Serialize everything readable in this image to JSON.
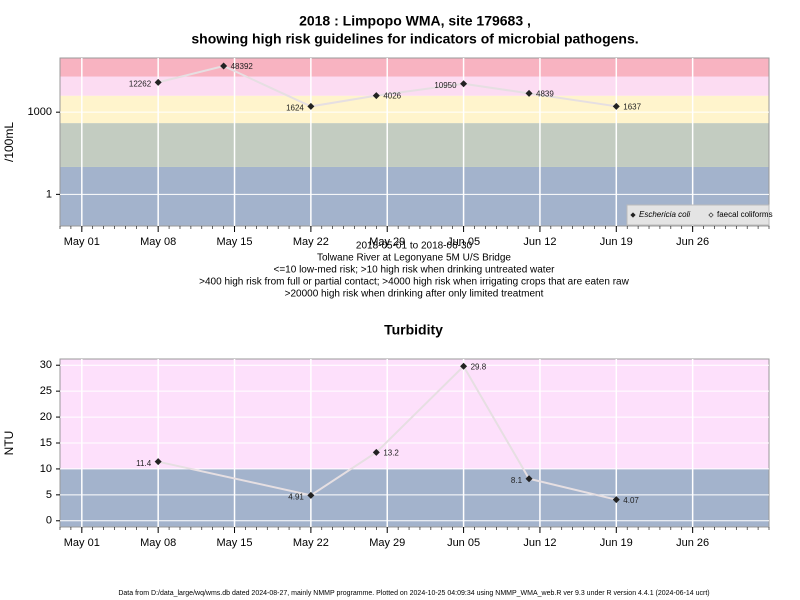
{
  "title": [
    "2018 : Limpopo WMA, site 179683 ,",
    "showing high risk guidelines for indicators of microbial pathogens."
  ],
  "footer": "Data from D:/data_large/wq/wms.db dated 2024-08-27, mainly NMMP programme. Plotted on 2024-10-25 04:09:34 using NMMP_WMA_web.R ver 9.3 under R version 4.4.1 (2024-06-14 ucrt)",
  "chart_data": [
    {
      "type": "line",
      "ylabel": "/100mL",
      "yscale": "log",
      "x": [
        "2018-05-08",
        "2018-05-14",
        "2018-05-22",
        "2018-05-28",
        "2018-06-05",
        "2018-06-11",
        "2018-06-19"
      ],
      "series": [
        {
          "name": "Eschericia coli",
          "color": "#222222",
          "values": [
            12262,
            48392,
            1624,
            4026,
            10950,
            4839,
            1637
          ]
        },
        {
          "name": "faecal coliforms",
          "color": "#222222",
          "values": [
            null,
            null,
            null,
            null,
            null,
            null,
            null
          ]
        }
      ],
      "line_color": "#e6dfe2",
      "xlim": [
        "2018-04-29",
        "2018-07-03"
      ],
      "xticks": [
        {
          "value": "2018-05-01",
          "label": "May 01"
        },
        {
          "value": "2018-05-08",
          "label": "May 08"
        },
        {
          "value": "2018-05-15",
          "label": "May 15"
        },
        {
          "value": "2018-05-22",
          "label": "May 22"
        },
        {
          "value": "2018-05-29",
          "label": "May 29"
        },
        {
          "value": "2018-06-05",
          "label": "Jun 05"
        },
        {
          "value": "2018-06-12",
          "label": "Jun 12"
        },
        {
          "value": "2018-06-19",
          "label": "Jun 19"
        },
        {
          "value": "2018-06-26",
          "label": "Jun 26"
        }
      ],
      "ylim": [
        0.07,
        95000
      ],
      "yticks": [
        1,
        1000
      ],
      "thresholds": [
        10,
        400,
        4000,
        20000
      ],
      "band_colors": [
        "#a3b3cc",
        "#c3ccc1",
        "#fff4cc",
        "#fcdcf2",
        "#f8b3c1"
      ],
      "grid": true,
      "legend": "bottom right",
      "notes": [
        "2018-05-01 to 2018-06-30",
        "Tolwane River at Legonyane 5M U/S Bridge",
        "<=10 low-med risk; >10 high risk when drinking untreated water",
        ">400 high risk from full or partial contact; >4000 high risk when irrigating crops that are eaten raw",
        ">20000 high risk when drinking after only limited treatment"
      ]
    },
    {
      "type": "line",
      "title": "Turbidity",
      "ylabel": "NTU",
      "x": [
        "2018-05-08",
        "2018-05-22",
        "2018-05-28",
        "2018-06-05",
        "2018-06-11",
        "2018-06-19"
      ],
      "series": [
        {
          "name": "Turbidity",
          "color": "#222222",
          "values": [
            11.4,
            4.91,
            13.2,
            29.8,
            8.1,
            4.07
          ]
        }
      ],
      "line_color": "#e6dfe2",
      "xlim": [
        "2018-04-29",
        "2018-07-03"
      ],
      "xticks": [
        {
          "value": "2018-05-01",
          "label": "May 01"
        },
        {
          "value": "2018-05-08",
          "label": "May 08"
        },
        {
          "value": "2018-05-15",
          "label": "May 15"
        },
        {
          "value": "2018-05-22",
          "label": "May 22"
        },
        {
          "value": "2018-05-29",
          "label": "May 29"
        },
        {
          "value": "2018-06-05",
          "label": "Jun 05"
        },
        {
          "value": "2018-06-12",
          "label": "Jun 12"
        },
        {
          "value": "2018-06-19",
          "label": "Jun 19"
        },
        {
          "value": "2018-06-26",
          "label": "Jun 26"
        }
      ],
      "ylim": [
        -1.2,
        31.2
      ],
      "yticks": [
        0,
        5,
        10,
        15,
        20,
        25,
        30
      ],
      "thresholds": [
        10
      ],
      "band_colors": [
        "#a3b3cc",
        "#fde0fb"
      ],
      "grid": true
    }
  ]
}
